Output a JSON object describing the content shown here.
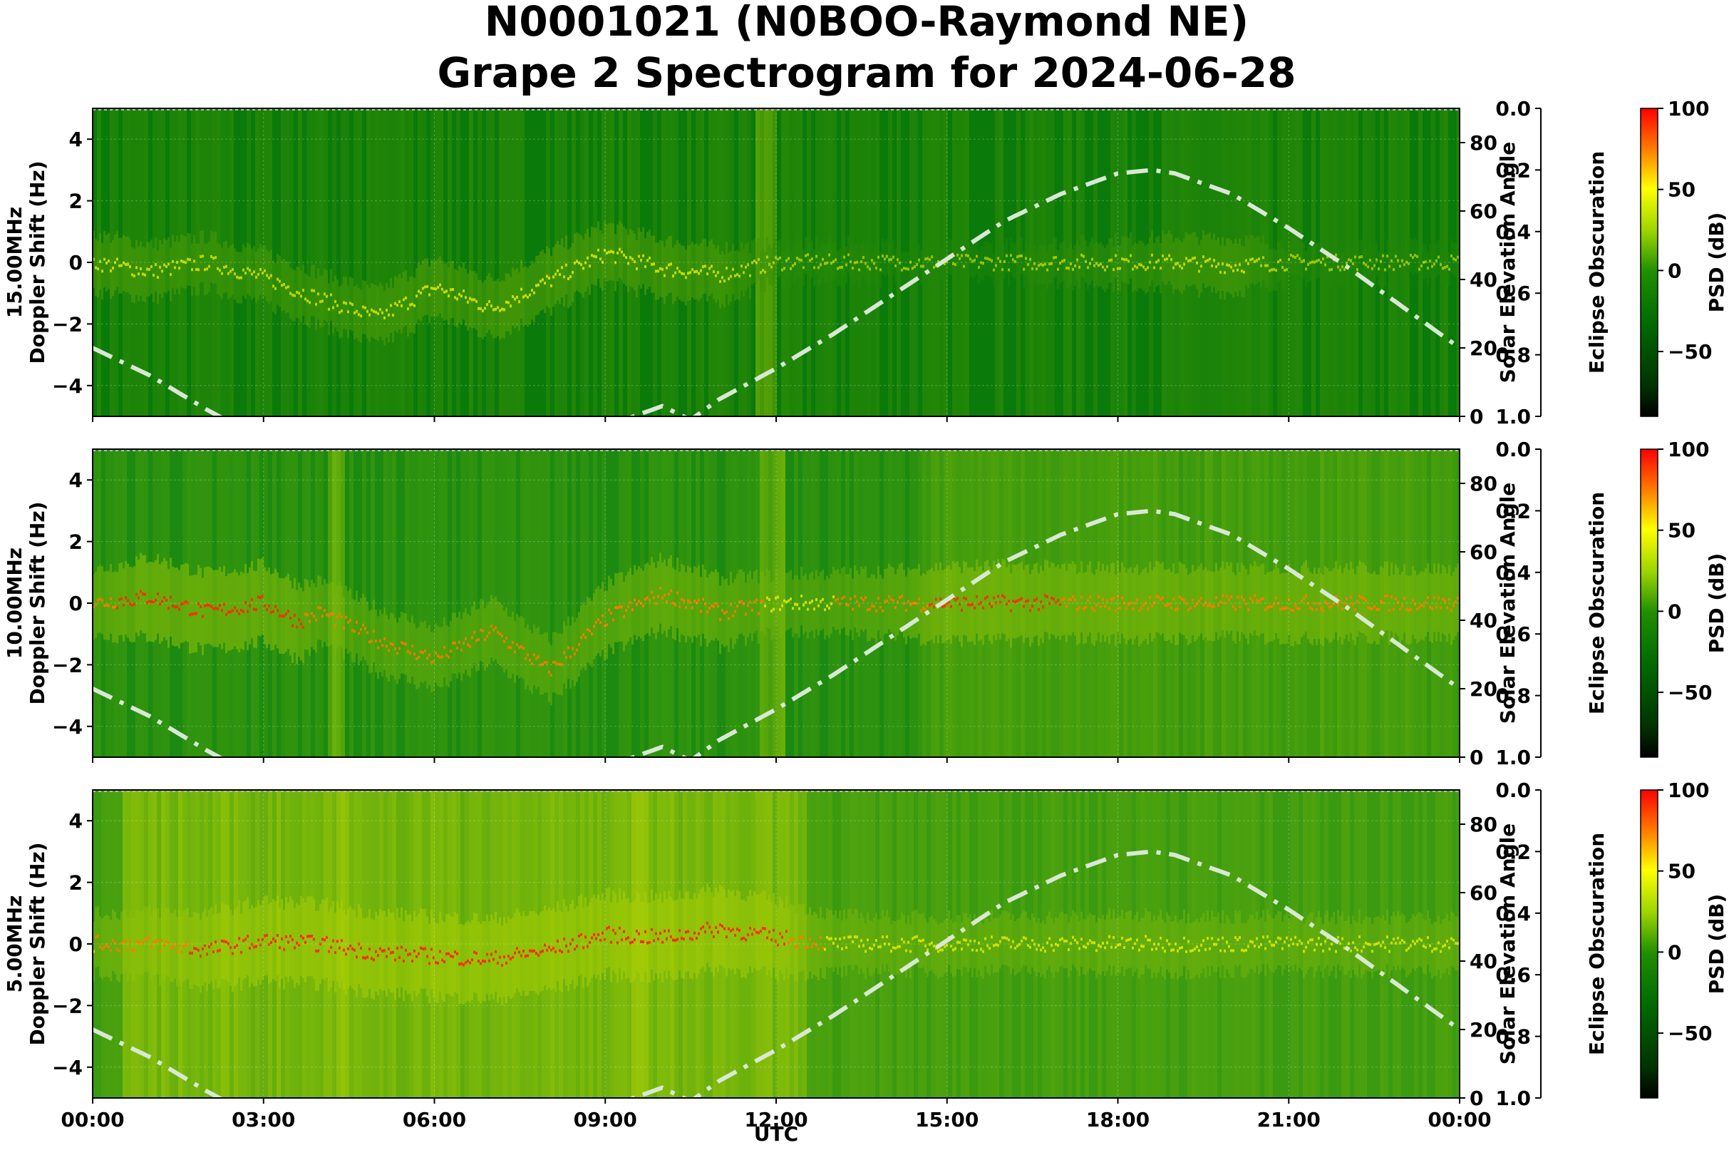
{
  "title_line1": "N0001021 (N0BOO-Raymond NE)",
  "title_line2": "Grape 2 Spectrogram for 2024-06-28",
  "chart_data": {
    "type": "heatmap",
    "xlabel": "UTC",
    "x_ticks": [
      "00:00",
      "03:00",
      "06:00",
      "09:00",
      "12:00",
      "15:00",
      "18:00",
      "21:00",
      "00:00"
    ],
    "xlim_hours": [
      0,
      24
    ],
    "ylim_doppler_hz": [
      -5,
      5
    ],
    "y_ticks": [
      4,
      2,
      0,
      -2,
      -4
    ],
    "right_axis": {
      "label": "Solar Elevation Angle",
      "ylim_deg": [
        0,
        90
      ],
      "ticks": [
        0,
        20,
        40,
        60,
        80
      ]
    },
    "eclipse_axis": {
      "label": "Eclipse Obscuration",
      "ylim": [
        1.0,
        0.0
      ],
      "ticks": [
        "0.0",
        "0.2",
        "0.4",
        "0.6",
        "0.8",
        "1.0"
      ]
    },
    "colorbar": {
      "label": "PSD (dB)",
      "range_db": [
        -90,
        100
      ],
      "ticks": [
        "100",
        "50",
        "0",
        "−50"
      ],
      "colors": [
        "#000000",
        "#004400",
        "#007a00",
        "#33a600",
        "#c8e600",
        "#ffff00",
        "#ff6600",
        "#ff0000"
      ]
    },
    "solar_elevation_curve": {
      "hours": [
        0,
        1,
        1.7,
        2,
        3,
        4,
        5,
        6,
        7,
        8,
        9,
        10,
        10.5,
        11,
        12,
        13,
        14,
        15,
        16,
        17,
        18,
        18.6,
        19,
        20,
        21,
        22,
        23,
        24
      ],
      "deg": [
        20,
        12,
        5,
        2,
        -7,
        -15,
        -20,
        -22,
        -19,
        -12,
        -3,
        3,
        -1,
        5,
        14,
        24,
        35,
        46,
        57,
        65,
        71,
        72,
        71,
        65,
        55,
        44,
        32,
        20
      ],
      "color": "#d9e8d4"
    },
    "panels": [
      {
        "ylabel": "15.00MHz\nDoppler Shift (Hz)",
        "base_color": "#0a7a0a",
        "noisy_bands": [
          {
            "from": 11.6,
            "to": 12.0,
            "level": 0.45
          }
        ],
        "trace": {
          "hours": [
            0,
            1,
            2,
            3,
            4,
            5,
            6,
            7,
            8,
            9,
            10,
            11,
            12,
            13,
            14,
            15,
            16,
            17,
            18,
            19,
            20,
            21,
            22
          ],
          "hz": [
            0,
            -0.3,
            0,
            -0.5,
            -1.2,
            -1.8,
            -0.8,
            -1.5,
            -0.6,
            0.3,
            -0.2,
            -0.4,
            0,
            0,
            0,
            0,
            0,
            0,
            0,
            0,
            -0.1,
            0,
            0
          ],
          "strength": [
            0.55,
            0.5,
            0.45,
            0.45,
            0.45,
            0.5,
            0.55,
            0.55,
            0.6,
            0.55,
            0.55,
            0.5,
            0.2,
            0.2,
            0.15,
            0.15,
            0.15,
            0.25,
            0.35,
            0.45,
            0.5,
            0.2,
            0.15
          ]
        }
      },
      {
        "ylabel": "10.00MHz\nDoppler Shift (Hz)",
        "base_color": "#1c8a10",
        "noisy_bands": [
          {
            "from": 4.1,
            "to": 4.4,
            "level": 0.5
          },
          {
            "from": 11.7,
            "to": 12.1,
            "level": 0.5
          },
          {
            "from": 14.5,
            "to": 24,
            "level": 0.25
          }
        ],
        "trace": {
          "hours": [
            0,
            1,
            2,
            3,
            3.6,
            4,
            5,
            6,
            7,
            8,
            9,
            10,
            11,
            12,
            13,
            14,
            15,
            16,
            17,
            18,
            19,
            20,
            21,
            22,
            23,
            24
          ],
          "hz": [
            0,
            0.2,
            -0.3,
            0,
            -0.6,
            -0.3,
            -1.2,
            -1.8,
            -0.9,
            -2.2,
            -0.5,
            0.3,
            -0.3,
            0,
            0,
            0,
            0,
            0,
            0,
            0,
            0,
            0,
            0,
            0,
            0,
            0
          ],
          "strength": [
            0.7,
            0.95,
            0.9,
            0.9,
            0.85,
            0.65,
            0.65,
            0.6,
            0.65,
            0.6,
            0.75,
            0.8,
            0.75,
            0.55,
            0.6,
            0.7,
            0.85,
            0.85,
            0.8,
            0.8,
            0.8,
            0.75,
            0.8,
            0.8,
            0.75,
            0.75
          ]
        }
      },
      {
        "ylabel": "5.00MHz\nDoppler Shift (Hz)",
        "base_color": "#3a9a10",
        "noisy_bands": [
          {
            "from": 0.5,
            "to": 12.5,
            "level": 0.55
          },
          {
            "from": 4,
            "to": 4.5,
            "level": 0.3
          },
          {
            "from": 9.4,
            "to": 9.8,
            "level": 0.3
          }
        ],
        "trace": {
          "hours": [
            0,
            1,
            2,
            3,
            4,
            5,
            6,
            7,
            8,
            9,
            10,
            11,
            12,
            13,
            14,
            15,
            16,
            17,
            18,
            19,
            20,
            21,
            22,
            23,
            24
          ],
          "hz": [
            0,
            0,
            -0.2,
            0.1,
            0,
            -0.3,
            -0.4,
            -0.5,
            -0.2,
            0.3,
            0.2,
            0.5,
            0.2,
            0,
            0,
            0,
            0,
            0,
            0,
            0,
            0,
            0,
            0,
            0,
            0
          ],
          "strength": [
            0.6,
            0.7,
            0.85,
            0.95,
            0.95,
            0.95,
            0.95,
            0.95,
            0.95,
            0.95,
            0.95,
            0.95,
            0.85,
            0.55,
            0.5,
            0.5,
            0.5,
            0.5,
            0.55,
            0.55,
            0.5,
            0.5,
            0.5,
            0.5,
            0.5
          ]
        }
      }
    ]
  }
}
